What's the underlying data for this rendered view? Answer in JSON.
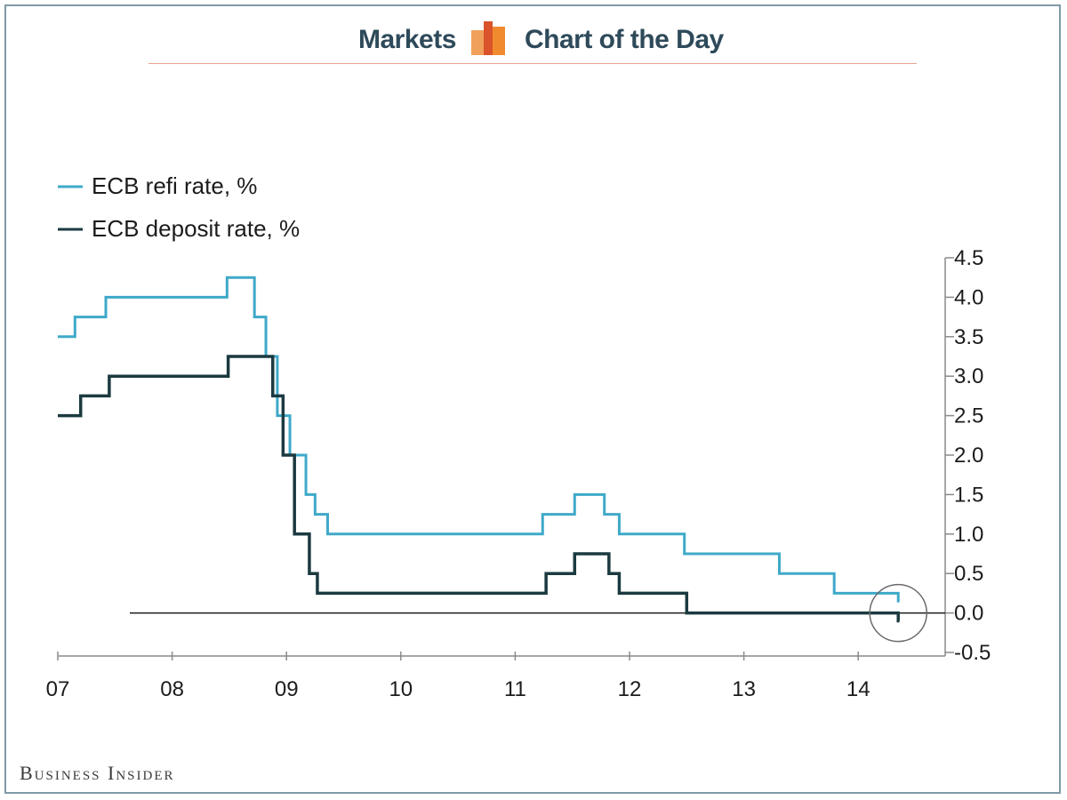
{
  "header": {
    "left_text": "Markets",
    "right_text": "Chart of the Day",
    "logo_icon": "bar-chart-logo-icon",
    "rule_color": "#e8a58a"
  },
  "footer": {
    "brand": "Business Insider"
  },
  "chart_data": {
    "type": "line",
    "line_style": "step",
    "title": "",
    "xlabel": "",
    "ylabel": "",
    "x_axis": {
      "range": [
        2007.0,
        2014.75
      ],
      "ticks": [
        2007,
        2008,
        2009,
        2010,
        2011,
        2012,
        2013,
        2014
      ],
      "tick_labels": [
        "07",
        "08",
        "09",
        "10",
        "11",
        "12",
        "13",
        "14"
      ]
    },
    "y_axis": {
      "position": "right",
      "range": [
        -0.5,
        4.5
      ],
      "ticks": [
        4.5,
        4.0,
        3.5,
        3.0,
        2.5,
        2.0,
        1.5,
        1.0,
        0.5,
        0.0,
        -0.5
      ],
      "tick_labels": [
        "4.5",
        "4.0",
        "3.5",
        "3.0",
        "2.5",
        "2.0",
        "1.5",
        "1.0",
        "0.5",
        "0.0",
        "-0.5"
      ]
    },
    "grid": false,
    "legend": {
      "placement": "top-left"
    },
    "zero_line": {
      "from_x": 2007.63
    },
    "annotation": {
      "type": "circle",
      "target_x": 2014.35,
      "target_y": 0.0
    },
    "series": [
      {
        "name": "ECB refi rate, %",
        "color": "#3fa9c9",
        "points": [
          [
            2007.0,
            3.5
          ],
          [
            2007.15,
            3.75
          ],
          [
            2007.42,
            4.0
          ],
          [
            2008.48,
            4.25
          ],
          [
            2008.72,
            3.75
          ],
          [
            2008.82,
            3.25
          ],
          [
            2008.92,
            2.5
          ],
          [
            2009.03,
            2.0
          ],
          [
            2009.17,
            1.5
          ],
          [
            2009.25,
            1.25
          ],
          [
            2009.36,
            1.0
          ],
          [
            2011.24,
            1.25
          ],
          [
            2011.52,
            1.5
          ],
          [
            2011.78,
            1.25
          ],
          [
            2011.91,
            1.0
          ],
          [
            2012.48,
            0.75
          ],
          [
            2013.31,
            0.5
          ],
          [
            2013.79,
            0.25
          ],
          [
            2014.35,
            0.15
          ]
        ],
        "end_x": 2014.36
      },
      {
        "name": "ECB deposit rate, %",
        "color": "#1b3a40",
        "points": [
          [
            2007.0,
            2.5
          ],
          [
            2007.2,
            2.75
          ],
          [
            2007.45,
            3.0
          ],
          [
            2008.49,
            3.25
          ],
          [
            2008.88,
            2.75
          ],
          [
            2008.97,
            2.0
          ],
          [
            2009.07,
            1.0
          ],
          [
            2009.2,
            0.5
          ],
          [
            2009.27,
            0.25
          ],
          [
            2011.27,
            0.5
          ],
          [
            2011.52,
            0.75
          ],
          [
            2011.82,
            0.5
          ],
          [
            2011.91,
            0.25
          ],
          [
            2012.5,
            0.0
          ],
          [
            2014.35,
            -0.1
          ]
        ],
        "end_x": 2014.36
      }
    ]
  }
}
